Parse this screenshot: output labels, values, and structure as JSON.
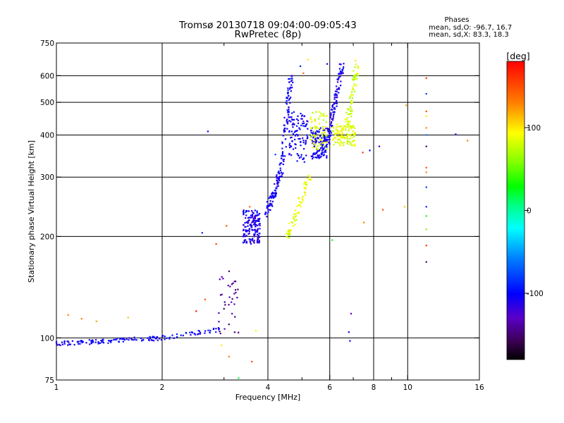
{
  "header": {
    "title_line1": "Tromsø 20130718 09:04:00-09:05:43",
    "title_line2": "RwPretec (8p)"
  },
  "stats": {
    "heading": "Phases",
    "line_o": "mean, sd,O: -96.7, 16.7",
    "line_x": "mean, sd,X: 83.3, 18.3"
  },
  "colorbar": {
    "unit": "[deg]",
    "ticks": [
      {
        "label": "100",
        "value": 100
      },
      {
        "label": "0",
        "value": 0
      },
      {
        "label": "-100",
        "value": -100
      }
    ],
    "range": [
      -180,
      180
    ]
  },
  "chart_data": {
    "type": "scatter",
    "xlabel": "Frequency [MHz]",
    "ylabel": "Stationary phase Virtual Height [km]",
    "x_scale": "log",
    "y_scale": "log",
    "xlim": [
      1,
      16
    ],
    "ylim": [
      75,
      750
    ],
    "x_ticks": [
      {
        "label": "1",
        "value": 1
      },
      {
        "label": "2",
        "value": 2
      },
      {
        "label": "4",
        "value": 4
      },
      {
        "label": "6",
        "value": 6
      },
      {
        "label": "8",
        "value": 8
      },
      {
        "label": "10",
        "value": 10
      },
      {
        "label": "16",
        "value": 16
      }
    ],
    "x_grid": [
      2,
      4,
      6,
      8,
      10
    ],
    "x_minor": [
      3,
      5,
      7,
      9
    ],
    "y_ticks": [
      {
        "label": "750",
        "value": 750
      },
      {
        "label": "600",
        "value": 600
      },
      {
        "label": "500",
        "value": 500
      },
      {
        "label": "400",
        "value": 400
      },
      {
        "label": "300",
        "value": 300
      },
      {
        "label": "200",
        "value": 200
      },
      {
        "label": "100",
        "value": 100
      },
      {
        "label": "75",
        "value": 75
      }
    ],
    "y_grid": [
      600,
      500,
      400,
      300,
      200,
      100
    ],
    "color": "phase [deg]",
    "clusters": [
      {
        "x": [
          1.0,
          2.0
        ],
        "y": [
          96,
          100
        ],
        "phase": -105,
        "n": 110,
        "shape": "log_trend"
      },
      {
        "x": [
          2.0,
          2.95
        ],
        "y": [
          100,
          106
        ],
        "phase": -100,
        "n": 40,
        "shape": "log_trend"
      },
      {
        "x": [
          2.85,
          3.3
        ],
        "y": [
          102,
          160
        ],
        "phase": -140,
        "n": 35,
        "shape": "spread"
      },
      {
        "x": [
          3.4,
          3.8
        ],
        "y": [
          190,
          240
        ],
        "phase": -110,
        "n": 160,
        "shape": "spread"
      },
      {
        "x": [
          3.95,
          4.35
        ],
        "y": [
          230,
          310
        ],
        "phase": -105,
        "n": 80,
        "shape": "diag"
      },
      {
        "x": [
          4.35,
          4.65
        ],
        "y": [
          300,
          600
        ],
        "phase": -105,
        "n": 90,
        "shape": "diag"
      },
      {
        "x": [
          4.6,
          5.2
        ],
        "y": [
          330,
          470
        ],
        "phase": -105,
        "n": 100,
        "shape": "spread"
      },
      {
        "x": [
          5.3,
          5.9
        ],
        "y": [
          340,
          420
        ],
        "phase": -105,
        "n": 130,
        "shape": "spread"
      },
      {
        "x": [
          5.9,
          6.5
        ],
        "y": [
          380,
          640
        ],
        "phase": -110,
        "n": 110,
        "shape": "diag"
      },
      {
        "x": [
          4.55,
          5.25
        ],
        "y": [
          200,
          300
        ],
        "phase": 88,
        "n": 70,
        "shape": "diag"
      },
      {
        "x": [
          5.3,
          5.9
        ],
        "y": [
          360,
          470
        ],
        "phase": 85,
        "n": 70,
        "shape": "spread"
      },
      {
        "x": [
          6.1,
          7.1
        ],
        "y": [
          370,
          430
        ],
        "phase": 85,
        "n": 110,
        "shape": "spread"
      },
      {
        "x": [
          6.7,
          7.2
        ],
        "y": [
          420,
          650
        ],
        "phase": 80,
        "n": 70,
        "shape": "diag"
      }
    ],
    "scatter_points": [
      {
        "x": 1.08,
        "y": 117,
        "phase": 130
      },
      {
        "x": 1.18,
        "y": 114,
        "phase": 130
      },
      {
        "x": 1.3,
        "y": 112,
        "phase": 120
      },
      {
        "x": 1.6,
        "y": 115,
        "phase": 110
      },
      {
        "x": 2.7,
        "y": 410,
        "phase": -100
      },
      {
        "x": 2.6,
        "y": 205,
        "phase": -90
      },
      {
        "x": 2.85,
        "y": 190,
        "phase": 160
      },
      {
        "x": 3.05,
        "y": 215,
        "phase": 150
      },
      {
        "x": 3.1,
        "y": 88,
        "phase": 130
      },
      {
        "x": 2.95,
        "y": 95,
        "phase": 100
      },
      {
        "x": 3.55,
        "y": 245,
        "phase": 140
      },
      {
        "x": 3.6,
        "y": 85,
        "phase": 150
      },
      {
        "x": 3.3,
        "y": 76,
        "phase": 20
      },
      {
        "x": 3.7,
        "y": 105,
        "phase": 90
      },
      {
        "x": 2.5,
        "y": 120,
        "phase": 170
      },
      {
        "x": 2.65,
        "y": 130,
        "phase": 150
      },
      {
        "x": 4.95,
        "y": 640,
        "phase": -90
      },
      {
        "x": 5.05,
        "y": 610,
        "phase": 140
      },
      {
        "x": 5.2,
        "y": 670,
        "phase": 100
      },
      {
        "x": 4.2,
        "y": 350,
        "phase": -80
      },
      {
        "x": 7.8,
        "y": 360,
        "phase": -100
      },
      {
        "x": 8.3,
        "y": 370,
        "phase": -120
      },
      {
        "x": 8.5,
        "y": 240,
        "phase": 150
      },
      {
        "x": 9.8,
        "y": 245,
        "phase": 110
      },
      {
        "x": 7.5,
        "y": 220,
        "phase": 130
      },
      {
        "x": 6.9,
        "y": 118,
        "phase": -130
      },
      {
        "x": 6.8,
        "y": 104,
        "phase": -110
      },
      {
        "x": 6.85,
        "y": 98,
        "phase": -100
      },
      {
        "x": 6.1,
        "y": 195,
        "phase": 20
      },
      {
        "x": 7.45,
        "y": 355,
        "phase": 160
      },
      {
        "x": 9.9,
        "y": 490,
        "phase": 120
      },
      {
        "x": 11.3,
        "y": 590,
        "phase": 160
      },
      {
        "x": 11.3,
        "y": 530,
        "phase": -80
      },
      {
        "x": 11.3,
        "y": 470,
        "phase": 150
      },
      {
        "x": 11.3,
        "y": 455,
        "phase": 100
      },
      {
        "x": 11.3,
        "y": 420,
        "phase": 130
      },
      {
        "x": 11.3,
        "y": 400,
        "phase": -60
      },
      {
        "x": 11.3,
        "y": 370,
        "phase": -150
      },
      {
        "x": 11.3,
        "y": 320,
        "phase": 150
      },
      {
        "x": 11.3,
        "y": 310,
        "phase": 130
      },
      {
        "x": 11.3,
        "y": 280,
        "phase": -80
      },
      {
        "x": 11.3,
        "y": 245,
        "phase": -90
      },
      {
        "x": 11.3,
        "y": 230,
        "phase": 30
      },
      {
        "x": 11.3,
        "y": 210,
        "phase": 60
      },
      {
        "x": 11.3,
        "y": 188,
        "phase": 160
      },
      {
        "x": 11.3,
        "y": 168,
        "phase": -150
      },
      {
        "x": 13.7,
        "y": 402,
        "phase": -100
      },
      {
        "x": 14.8,
        "y": 385,
        "phase": 130
      },
      {
        "x": 5.9,
        "y": 650,
        "phase": -100
      },
      {
        "x": 7.1,
        "y": 665,
        "phase": 100
      }
    ]
  }
}
